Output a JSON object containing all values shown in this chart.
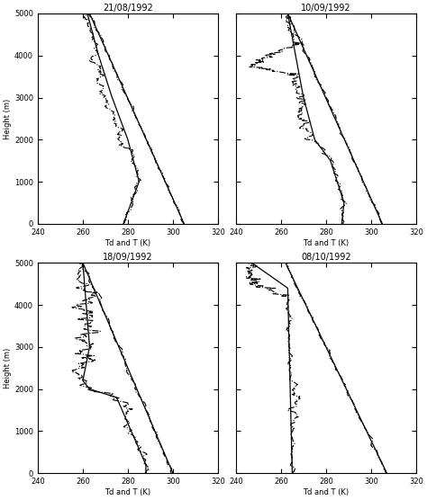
{
  "titles": [
    "21/08/1992",
    "10/09/1992",
    "18/09/1992",
    "08/10/1992"
  ],
  "xlabels": [
    "Td and T (K)",
    "Td and T (K)",
    "Td and T (K)",
    "Td and T (K)"
  ],
  "ylabel": "Height (m)",
  "xlim": [
    240,
    320
  ],
  "ylim": [
    0,
    5000
  ],
  "xticks": [
    240,
    260,
    280,
    300,
    320
  ],
  "yticks": [
    0,
    1000,
    2000,
    3000,
    4000,
    5000
  ],
  "background_color": "#ffffff",
  "line_color": "#000000",
  "figsize": [
    4.74,
    5.56
  ],
  "dpi": 100
}
